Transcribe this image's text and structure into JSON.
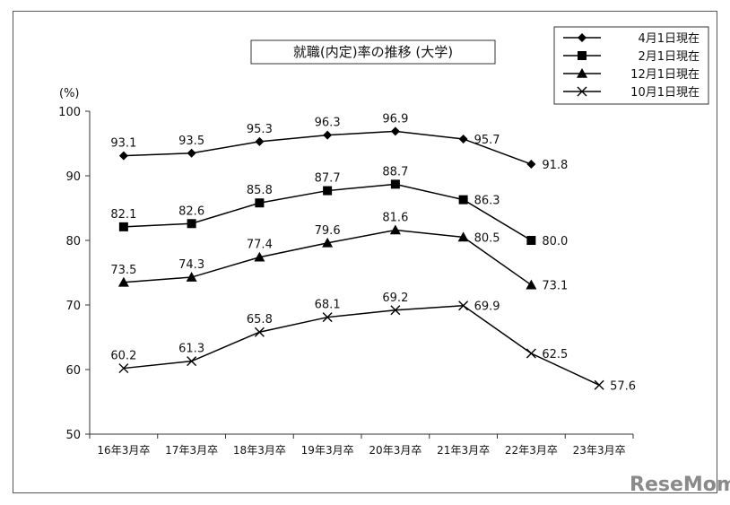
{
  "chart_data": {
    "type": "line",
    "title": "就職(内定)率の推移 (大学)",
    "ylabel": "(%)",
    "ylim": [
      50,
      100
    ],
    "yticks": [
      50,
      60,
      70,
      80,
      90,
      100
    ],
    "grid": false,
    "legend_position": "top-right",
    "categories": [
      "16年3月卒",
      "17年3月卒",
      "18年3月卒",
      "19年3月卒",
      "20年3月卒",
      "21年3月卒",
      "22年3月卒",
      "23年3月卒"
    ],
    "series": [
      {
        "name": "4月1日現在",
        "marker": "diamond",
        "values": [
          93.1,
          93.5,
          95.3,
          96.3,
          96.9,
          95.7,
          91.8,
          null
        ],
        "labels": [
          "93.1",
          "93.5",
          "95.3",
          "96.3",
          "96.9",
          "95.7",
          "91.8",
          null
        ]
      },
      {
        "name": "2月1日現在",
        "marker": "square",
        "values": [
          82.1,
          82.6,
          85.8,
          87.7,
          88.7,
          86.3,
          80.0,
          null
        ],
        "labels": [
          "82.1",
          "82.6",
          "85.8",
          "87.7",
          "88.7",
          "86.3",
          "80.0",
          null
        ]
      },
      {
        "name": "12月1日現在",
        "marker": "triangle",
        "values": [
          73.5,
          74.3,
          77.4,
          79.6,
          81.6,
          80.5,
          73.1,
          null
        ],
        "labels": [
          "73.5",
          "74.3",
          "77.4",
          "79.6",
          "81.6",
          "80.5",
          "73.1",
          null
        ]
      },
      {
        "name": "10月1日現在",
        "marker": "x",
        "values": [
          60.2,
          61.3,
          65.8,
          68.1,
          69.2,
          69.9,
          62.5,
          57.6
        ],
        "labels": [
          "60.2",
          "61.3",
          "65.8",
          "68.1",
          "69.2",
          "69.9",
          "62.5",
          "57.6"
        ]
      }
    ]
  },
  "watermark": "ReseMom"
}
